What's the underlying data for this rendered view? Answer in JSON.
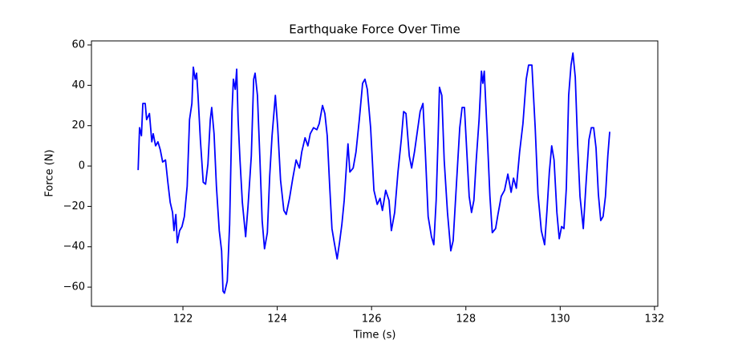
{
  "chart_data": {
    "type": "line",
    "title": "Earthquake Force Over Time",
    "x_label": "Time (s)",
    "y_label": "Force (N)",
    "xlim": [
      120.06,
      132.07
    ],
    "ylim": [
      -69.5,
      62
    ],
    "xticks": [
      122,
      124,
      126,
      128,
      130,
      132
    ],
    "yticks": [
      {
        "value": -60,
        "label": "−60"
      },
      {
        "value": -40,
        "label": "−40"
      },
      {
        "value": -20,
        "label": "−20"
      },
      0,
      20,
      40,
      60
    ],
    "grid": false,
    "x": [
      121.05,
      121.08,
      121.12,
      121.15,
      121.2,
      121.23,
      121.29,
      121.34,
      121.37,
      121.42,
      121.47,
      121.52,
      121.57,
      121.63,
      121.68,
      121.73,
      121.78,
      121.81,
      121.85,
      121.88,
      121.93,
      121.98,
      122.03,
      122.09,
      122.14,
      122.19,
      122.22,
      122.26,
      122.29,
      122.32,
      122.37,
      122.43,
      122.48,
      122.53,
      122.58,
      122.61,
      122.66,
      122.71,
      122.77,
      122.82,
      122.85,
      122.88,
      122.94,
      122.99,
      123.04,
      123.07,
      123.11,
      123.14,
      123.17,
      123.21,
      123.26,
      123.33,
      123.38,
      123.45,
      123.5,
      123.53,
      123.58,
      123.63,
      123.68,
      123.73,
      123.79,
      123.84,
      123.89,
      123.96,
      124.01,
      124.07,
      124.14,
      124.19,
      124.26,
      124.33,
      124.4,
      124.47,
      124.52,
      124.59,
      124.65,
      124.7,
      124.77,
      124.84,
      124.89,
      124.96,
      125.01,
      125.06,
      125.11,
      125.16,
      125.21,
      125.27,
      125.32,
      125.37,
      125.42,
      125.47,
      125.5,
      125.54,
      125.61,
      125.67,
      125.74,
      125.81,
      125.86,
      125.91,
      125.98,
      126.05,
      126.12,
      126.18,
      126.23,
      126.3,
      126.37,
      126.42,
      126.49,
      126.56,
      126.63,
      126.68,
      126.73,
      126.8,
      126.85,
      126.91,
      126.97,
      127.03,
      127.09,
      127.14,
      127.2,
      127.27,
      127.32,
      127.37,
      127.41,
      127.44,
      127.49,
      127.54,
      127.61,
      127.68,
      127.73,
      127.8,
      127.87,
      127.92,
      127.97,
      128.02,
      128.07,
      128.12,
      128.17,
      128.22,
      128.28,
      128.33,
      128.36,
      128.39,
      128.45,
      128.51,
      128.56,
      128.63,
      128.68,
      128.75,
      128.82,
      128.89,
      128.96,
      129.01,
      129.07,
      129.14,
      129.21,
      129.28,
      129.33,
      129.4,
      129.47,
      129.53,
      129.6,
      129.67,
      129.72,
      129.77,
      129.82,
      129.87,
      129.93,
      129.98,
      130.03,
      130.08,
      130.13,
      130.18,
      130.23,
      130.27,
      130.32,
      130.37,
      130.42,
      130.49,
      130.55,
      130.61,
      130.66,
      130.71,
      130.76,
      130.81,
      130.86,
      130.91,
      130.96,
      131.01,
      131.05
    ],
    "series": [
      {
        "color": "#0000ff",
        "values": [
          -2,
          19,
          15,
          31,
          31,
          23,
          26,
          12,
          16,
          10,
          12,
          8,
          2,
          3,
          -8,
          -18,
          -23,
          -32,
          -24,
          -38,
          -32,
          -30,
          -25,
          -10,
          23,
          31,
          49,
          43,
          46,
          35,
          13,
          -8,
          -9,
          1,
          23,
          29,
          16,
          -10,
          -32,
          -42,
          -62,
          -63,
          -57,
          -29,
          27,
          43,
          38,
          48,
          23,
          3,
          -18,
          -35,
          -20,
          5,
          43,
          46,
          35,
          5,
          -27,
          -41,
          -33,
          -5,
          15,
          35,
          19,
          -7,
          -22,
          -24,
          -16,
          -6,
          3,
          -1,
          7,
          14,
          10,
          16,
          19,
          18,
          21,
          30,
          26,
          15,
          -9,
          -31,
          -38,
          -46,
          -38,
          -29,
          -17,
          1,
          11,
          -3,
          -1,
          7,
          23,
          41,
          43,
          38,
          19,
          -12,
          -19,
          -16,
          -22,
          -12,
          -17,
          -32,
          -23,
          -3,
          13,
          27,
          26,
          5,
          -1,
          7,
          17,
          27,
          31,
          7,
          -25,
          -35,
          -39,
          -17,
          13,
          39,
          35,
          3,
          -23,
          -42,
          -37,
          -9,
          19,
          29,
          29,
          7,
          -15,
          -23,
          -17,
          3,
          23,
          47,
          41,
          47,
          17,
          -15,
          -33,
          -31,
          -24,
          -15,
          -12,
          -4,
          -13,
          -6,
          -11,
          7,
          21,
          43,
          50,
          50,
          19,
          -14,
          -32,
          -39,
          -22,
          -3,
          10,
          3,
          -23,
          -36,
          -30,
          -31,
          -11,
          35,
          50,
          56,
          44,
          11,
          -15,
          -31,
          -8,
          13,
          19,
          19,
          9,
          -14,
          -27,
          -25,
          -15,
          5,
          17
        ]
      }
    ]
  }
}
